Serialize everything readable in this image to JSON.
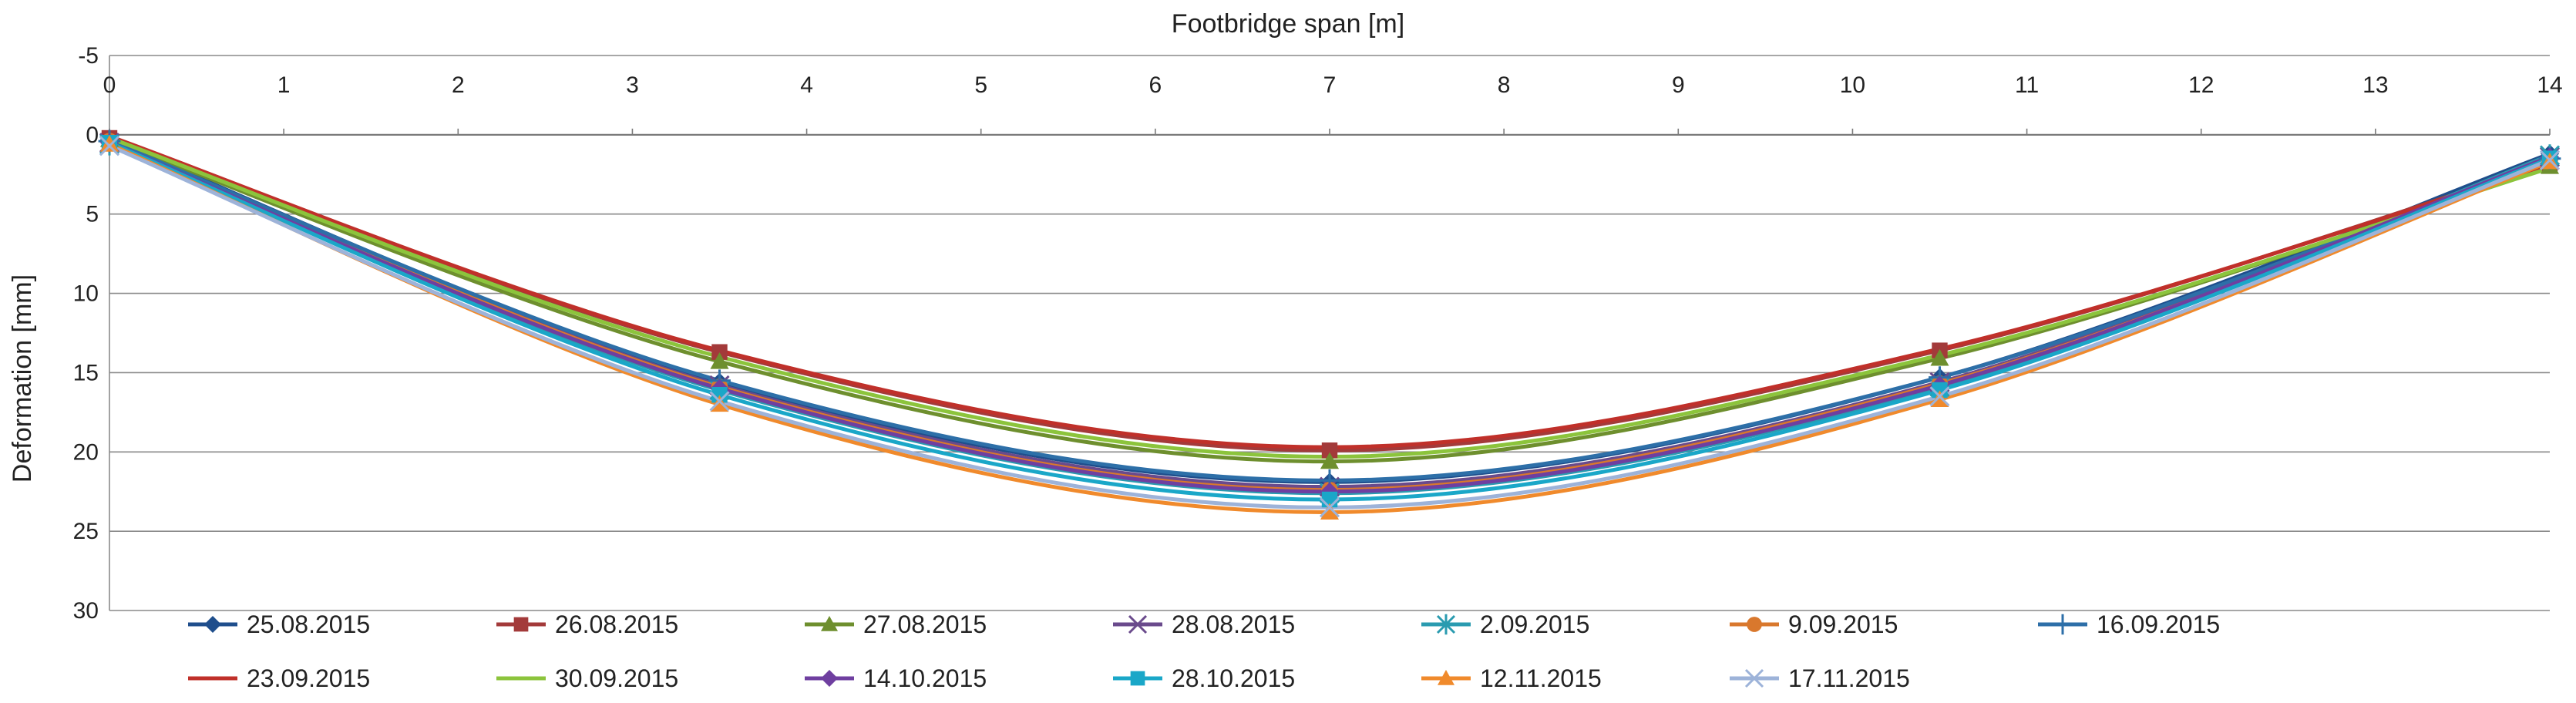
{
  "chart_data": {
    "type": "line",
    "title": "Footbridge span [m]",
    "xlabel": "Footbridge span [m]",
    "ylabel": "Deformation [mm]",
    "x_axis_position": "top",
    "y_inverted": true,
    "xlim": [
      0,
      14
    ],
    "ylim": [
      -5,
      30
    ],
    "x_ticks": [
      0,
      1,
      2,
      3,
      4,
      5,
      6,
      7,
      8,
      9,
      10,
      11,
      12,
      13,
      14
    ],
    "y_ticks": [
      -5,
      0,
      5,
      10,
      15,
      20,
      25,
      30
    ],
    "grid": "horizontal",
    "legend_position": "bottom",
    "x": [
      0,
      3.5,
      7,
      10.5,
      14
    ],
    "series": [
      {
        "name": "25.08.2015",
        "color": "#1f4e8c",
        "marker": "diamond",
        "values": [
          0.3,
          15.6,
          21.9,
          15.3,
          1.2
        ]
      },
      {
        "name": "26.08.2015",
        "color": "#a33a3a",
        "marker": "square",
        "values": [
          0.2,
          13.7,
          19.9,
          13.6,
          1.8
        ]
      },
      {
        "name": "27.08.2015",
        "color": "#6e8f2e",
        "marker": "triangle",
        "values": [
          0.3,
          14.3,
          20.6,
          14.1,
          2.0
        ]
      },
      {
        "name": "28.08.2015",
        "color": "#6a4a8c",
        "marker": "x",
        "values": [
          0.5,
          15.8,
          22.2,
          15.6,
          1.4
        ]
      },
      {
        "name": "2.09.2015",
        "color": "#2a9bb0",
        "marker": "asterisk",
        "values": [
          0.6,
          16.1,
          22.6,
          15.9,
          1.3
        ]
      },
      {
        "name": "9.09.2015",
        "color": "#d9782d",
        "marker": "circle",
        "values": [
          0.4,
          15.9,
          22.4,
          15.7,
          1.6
        ]
      },
      {
        "name": "16.09.2015",
        "color": "#2d6fa8",
        "marker": "plus",
        "values": [
          0.4,
          15.5,
          21.8,
          15.3,
          1.5
        ]
      },
      {
        "name": "23.09.2015",
        "color": "#c0302a",
        "marker": "none",
        "values": [
          0.1,
          13.6,
          19.7,
          13.5,
          1.9
        ]
      },
      {
        "name": "30.09.2015",
        "color": "#8cc43c",
        "marker": "none",
        "values": [
          0.2,
          14.0,
          20.3,
          13.9,
          2.1
        ]
      },
      {
        "name": "14.10.2015",
        "color": "#6f3fa0",
        "marker": "diamond",
        "values": [
          0.5,
          16.0,
          22.5,
          15.8,
          1.4
        ]
      },
      {
        "name": "28.10.2015",
        "color": "#1aa7c8",
        "marker": "square",
        "values": [
          0.5,
          16.4,
          23.0,
          16.1,
          1.5
        ]
      },
      {
        "name": "12.11.2015",
        "color": "#f08a2c",
        "marker": "triangle",
        "values": [
          0.6,
          17.0,
          23.8,
          16.7,
          1.7
        ]
      },
      {
        "name": "17.11.2015",
        "color": "#9db3d9",
        "marker": "x",
        "values": [
          0.7,
          16.8,
          23.5,
          16.5,
          1.6
        ]
      }
    ]
  }
}
